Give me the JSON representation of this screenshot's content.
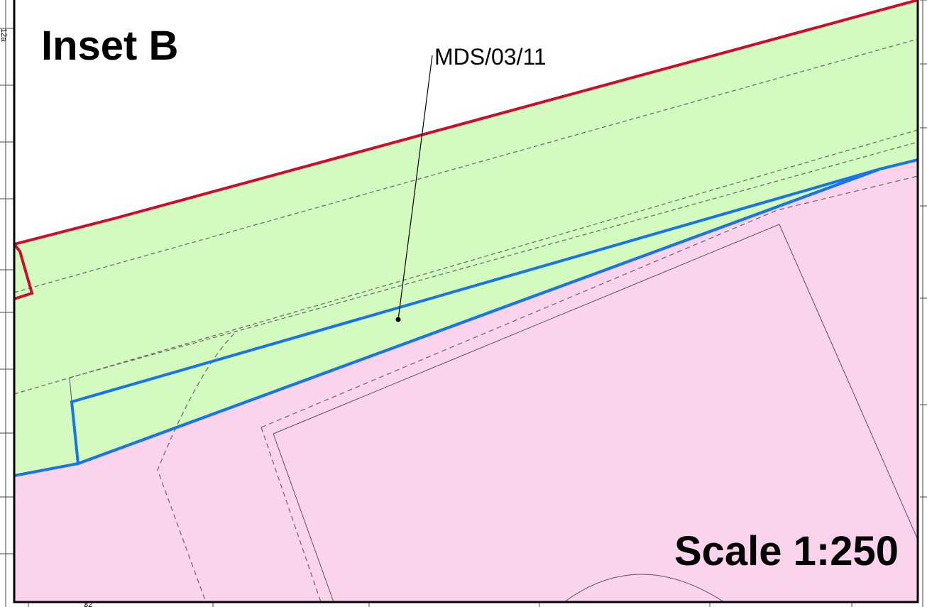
{
  "inset": {
    "title": "Inset B"
  },
  "site": {
    "reference": "MDS/03/11"
  },
  "scale": {
    "label": "Scale 1:250"
  },
  "basemap_text": {
    "house_number_a": "12a",
    "house_number_b": "32"
  },
  "colors": {
    "green_belt_fill": "#d3fbc0",
    "developed_site_fill": "#fbd3ec",
    "boundary_red": "#c8102e",
    "site_boundary_blue": "#1a73e8",
    "frame": "#000000",
    "basemap_lines": "#555555"
  },
  "legend_semantics": {
    "green_area": "green-belt-land",
    "pink_area": "major-developed-site",
    "blue_outline": "site-allocation-boundary",
    "red_outline": "plan-boundary"
  }
}
